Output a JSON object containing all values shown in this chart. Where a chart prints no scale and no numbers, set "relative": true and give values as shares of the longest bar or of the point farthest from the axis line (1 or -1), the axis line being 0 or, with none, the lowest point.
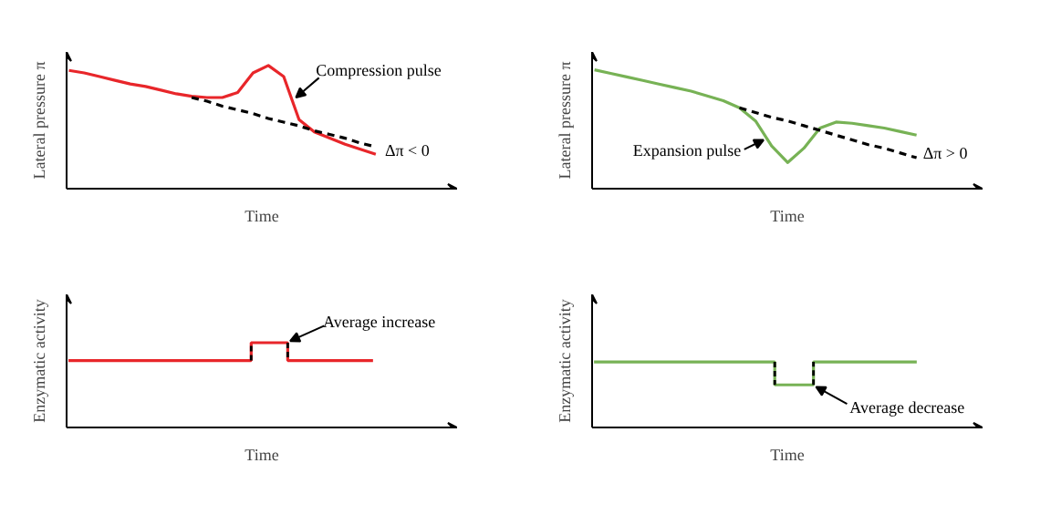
{
  "chart_data": [
    {
      "type": "line",
      "xlabel": "Time",
      "ylabel": "Lateral pressure π",
      "relative": true,
      "tick_labels": false,
      "grid": false,
      "categories": [
        null,
        null,
        null,
        null,
        null,
        null,
        null,
        null,
        null,
        null,
        null,
        null,
        null,
        null,
        null,
        null,
        null,
        null,
        null,
        null,
        null
      ],
      "series": [
        {
          "color": "#e8262a",
          "line_style": "solid",
          "values": [
            0.96,
            0.94,
            0.91,
            0.88,
            0.85,
            0.83,
            0.8,
            0.77,
            0.75,
            0.74,
            0.74,
            0.78,
            0.94,
            1.0,
            0.91,
            0.56,
            0.46,
            0.41,
            0.36,
            0.32,
            0.28
          ]
        },
        {
          "color": "#000000",
          "line_style": "dashed",
          "values": [
            null,
            null,
            null,
            null,
            null,
            null,
            null,
            null,
            0.74,
            0.71,
            0.67,
            0.64,
            0.61,
            0.57,
            0.54,
            0.51,
            0.47,
            0.44,
            0.41,
            0.37,
            0.34
          ]
        }
      ],
      "annotations": [
        "Compression pulse",
        "Δπ < 0"
      ]
    },
    {
      "type": "line",
      "xlabel": "Time",
      "ylabel": "Lateral pressure π",
      "relative": true,
      "tick_labels": false,
      "grid": false,
      "categories": [
        null,
        null,
        null,
        null,
        null,
        null,
        null,
        null,
        null,
        null,
        null,
        null,
        null,
        null,
        null,
        null,
        null,
        null,
        null,
        null,
        null
      ],
      "series": [
        {
          "color": "#77b255",
          "line_style": "solid",
          "values": [
            1.0,
            0.97,
            0.94,
            0.91,
            0.88,
            0.85,
            0.82,
            0.78,
            0.74,
            0.68,
            0.57,
            0.36,
            0.22,
            0.34,
            0.51,
            0.56,
            0.55,
            0.53,
            0.51,
            0.48,
            0.45
          ]
        },
        {
          "color": "#000000",
          "line_style": "dashed",
          "values": [
            null,
            null,
            null,
            null,
            null,
            null,
            null,
            null,
            null,
            0.68,
            0.64,
            0.6,
            0.57,
            0.53,
            0.49,
            0.45,
            0.41,
            0.37,
            0.34,
            0.3,
            0.26
          ]
        }
      ],
      "annotations": [
        "Expansion pulse",
        "Δπ > 0"
      ]
    },
    {
      "type": "step",
      "xlabel": "Time",
      "ylabel": "Enzymatic activity",
      "relative": true,
      "tick_labels": false,
      "grid": false,
      "categories": [
        null,
        null,
        null,
        null,
        null,
        null,
        null,
        null,
        null,
        null,
        null,
        null,
        null,
        null,
        null,
        null,
        null,
        null,
        null,
        null,
        null,
        null,
        null,
        null,
        null,
        null
      ],
      "series": [
        {
          "color": "#e8262a",
          "line_style": "solid",
          "values": [
            0.79,
            0.79,
            0.79,
            0.79,
            0.79,
            0.79,
            0.79,
            0.79,
            0.79,
            0.79,
            0.79,
            0.79,
            0.79,
            0.79,
            0.79,
            1.0,
            1.0,
            1.0,
            0.79,
            0.79,
            0.79,
            0.79,
            0.79,
            0.79,
            0.79,
            0.79
          ]
        }
      ],
      "annotations": [
        "Average increase"
      ]
    },
    {
      "type": "step",
      "xlabel": "Time",
      "ylabel": "Enzymatic activity",
      "relative": true,
      "tick_labels": false,
      "grid": false,
      "categories": [
        null,
        null,
        null,
        null,
        null,
        null,
        null,
        null,
        null,
        null,
        null,
        null,
        null,
        null,
        null,
        null,
        null,
        null,
        null,
        null,
        null,
        null,
        null,
        null,
        null,
        null
      ],
      "series": [
        {
          "color": "#77b255",
          "line_style": "solid",
          "values": [
            1.0,
            1.0,
            1.0,
            1.0,
            1.0,
            1.0,
            1.0,
            1.0,
            1.0,
            1.0,
            1.0,
            1.0,
            1.0,
            1.0,
            0.65,
            0.65,
            0.65,
            1.0,
            1.0,
            1.0,
            1.0,
            1.0,
            1.0,
            1.0,
            1.0,
            1.0
          ]
        }
      ],
      "annotations": [
        "Average decrease"
      ]
    }
  ]
}
